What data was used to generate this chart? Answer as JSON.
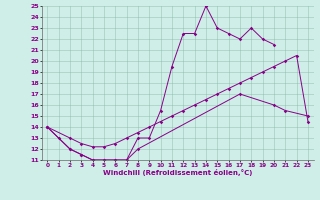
{
  "xlabel": "Windchill (Refroidissement éolien,°C)",
  "xlim": [
    -0.5,
    23.5
  ],
  "ylim": [
    11,
    25
  ],
  "xticks": [
    0,
    1,
    2,
    3,
    4,
    5,
    6,
    7,
    8,
    9,
    10,
    11,
    12,
    13,
    14,
    15,
    16,
    17,
    18,
    19,
    20,
    21,
    22,
    23
  ],
  "yticks": [
    11,
    12,
    13,
    14,
    15,
    16,
    17,
    18,
    19,
    20,
    21,
    22,
    23,
    24,
    25
  ],
  "bg_color": "#d0eee8",
  "line_color": "#880088",
  "curve1_x": [
    0,
    1,
    2,
    3,
    4,
    5,
    6,
    7,
    8,
    9,
    10,
    11,
    12,
    13,
    14,
    15,
    16,
    17,
    18,
    19,
    20
  ],
  "curve1_y": [
    14.0,
    13.0,
    12.0,
    11.5,
    11.0,
    11.0,
    11.0,
    11.0,
    13.0,
    13.0,
    15.5,
    19.5,
    22.5,
    22.5,
    25.0,
    23.0,
    22.5,
    22.0,
    23.0,
    22.0,
    21.5
  ],
  "curve2_x": [
    0,
    2,
    3,
    4,
    5,
    6,
    7,
    8,
    17,
    20,
    21,
    23
  ],
  "curve2_y": [
    14.0,
    12.0,
    11.5,
    11.0,
    11.0,
    11.0,
    11.0,
    12.0,
    17.0,
    16.0,
    15.5,
    15.0
  ],
  "curve3_x": [
    0,
    2,
    3,
    4,
    5,
    6,
    7,
    8,
    9,
    10,
    11,
    12,
    13,
    14,
    15,
    16,
    17,
    18,
    19,
    20,
    21,
    22,
    23
  ],
  "curve3_y": [
    14.0,
    13.0,
    12.5,
    12.2,
    12.2,
    12.5,
    13.0,
    13.5,
    14.0,
    14.5,
    15.0,
    15.5,
    16.0,
    16.5,
    17.0,
    17.5,
    18.0,
    18.5,
    19.0,
    19.5,
    20.0,
    20.5,
    14.5
  ]
}
